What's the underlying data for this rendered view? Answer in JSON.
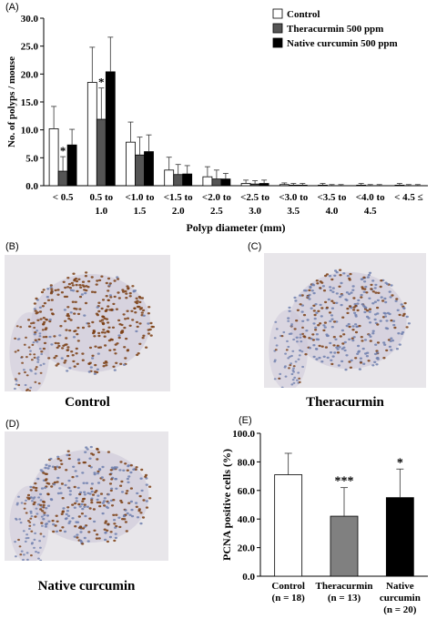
{
  "panels": {
    "a": "(A)",
    "b": "(B)",
    "c": "(C)",
    "d": "(D)",
    "e": "(E)"
  },
  "captions": {
    "b": "Control",
    "c": "Theracurmin",
    "d": "Native curcumin"
  },
  "micro_colors": {
    "background": "#e8e6ea",
    "stroma": "#c9c3d6",
    "brown": "#7a3d12",
    "blue": "#6f7fae"
  },
  "chart_data": [
    {
      "type": "bar",
      "ylabel": "No. of polyps / mouse",
      "xlabel": "Polyp diameter (mm)",
      "ylim": [
        0,
        30
      ],
      "yticks": [
        "0.0",
        "5.0",
        "10.0",
        "15.0",
        "20.0",
        "25.0",
        "30.0"
      ],
      "grid": false,
      "legend_position": "top-right",
      "categories": [
        [
          "< 0.5",
          ""
        ],
        [
          "0.5 to",
          "1.0"
        ],
        [
          "<1.0 to",
          "1.5"
        ],
        [
          "<1.5 to",
          "2.0"
        ],
        [
          "<2.0 to",
          "2.5"
        ],
        [
          "<2.5 to",
          "3.0"
        ],
        [
          "<3.0 to",
          "3.5"
        ],
        [
          "<3.5 to",
          "4.0"
        ],
        [
          "<4.0 to",
          "4.5"
        ],
        [
          "< 4.5 ≤",
          ""
        ]
      ],
      "series": [
        {
          "name": "Control",
          "color": "#ffffff",
          "values": [
            10.2,
            18.5,
            7.8,
            2.8,
            1.6,
            0.4,
            0.2,
            0.1,
            0.1,
            0.1
          ],
          "errors": [
            4.0,
            6.3,
            3.6,
            2.3,
            1.8,
            0.6,
            0.3,
            0.3,
            0.3,
            0.3
          ]
        },
        {
          "name": "Theracurmin 500 ppm",
          "color": "#555555",
          "values": [
            2.6,
            11.9,
            5.5,
            2.0,
            1.2,
            0.3,
            0.1,
            0.0,
            0.0,
            0.0
          ],
          "errors": [
            2.6,
            5.6,
            3.2,
            1.8,
            1.6,
            0.6,
            0.3,
            0.2,
            0.2,
            0.2
          ]
        },
        {
          "name": "Native curcumin 500 ppm",
          "color": "#000000",
          "values": [
            7.3,
            20.4,
            6.1,
            2.1,
            1.2,
            0.4,
            0.1,
            0.0,
            0.0,
            0.0
          ],
          "errors": [
            2.8,
            6.2,
            3.0,
            1.5,
            1.0,
            0.6,
            0.3,
            0.2,
            0.2,
            0.2
          ]
        }
      ],
      "annotations": [
        {
          "category": 0,
          "series": 1,
          "text": "*"
        },
        {
          "category": 1,
          "series": 1,
          "text": "*"
        }
      ]
    },
    {
      "type": "bar",
      "ylabel": "PCNA positive cells (%)",
      "ylim": [
        0,
        100
      ],
      "yticks": [
        "0.0",
        "20.0",
        "40.0",
        "60.0",
        "80.0",
        "100.0"
      ],
      "grid": false,
      "categories": [
        [
          "Control",
          "(n = 18)"
        ],
        [
          "Theracurmin",
          "(n = 13)"
        ],
        [
          "Native",
          "curcumin",
          "(n = 20)"
        ]
      ],
      "values": [
        71,
        42,
        55
      ],
      "errors": [
        15,
        20,
        20
      ],
      "colors": [
        "#ffffff",
        "#808080",
        "#000000"
      ],
      "annotations": [
        "",
        "***",
        "*"
      ]
    }
  ]
}
